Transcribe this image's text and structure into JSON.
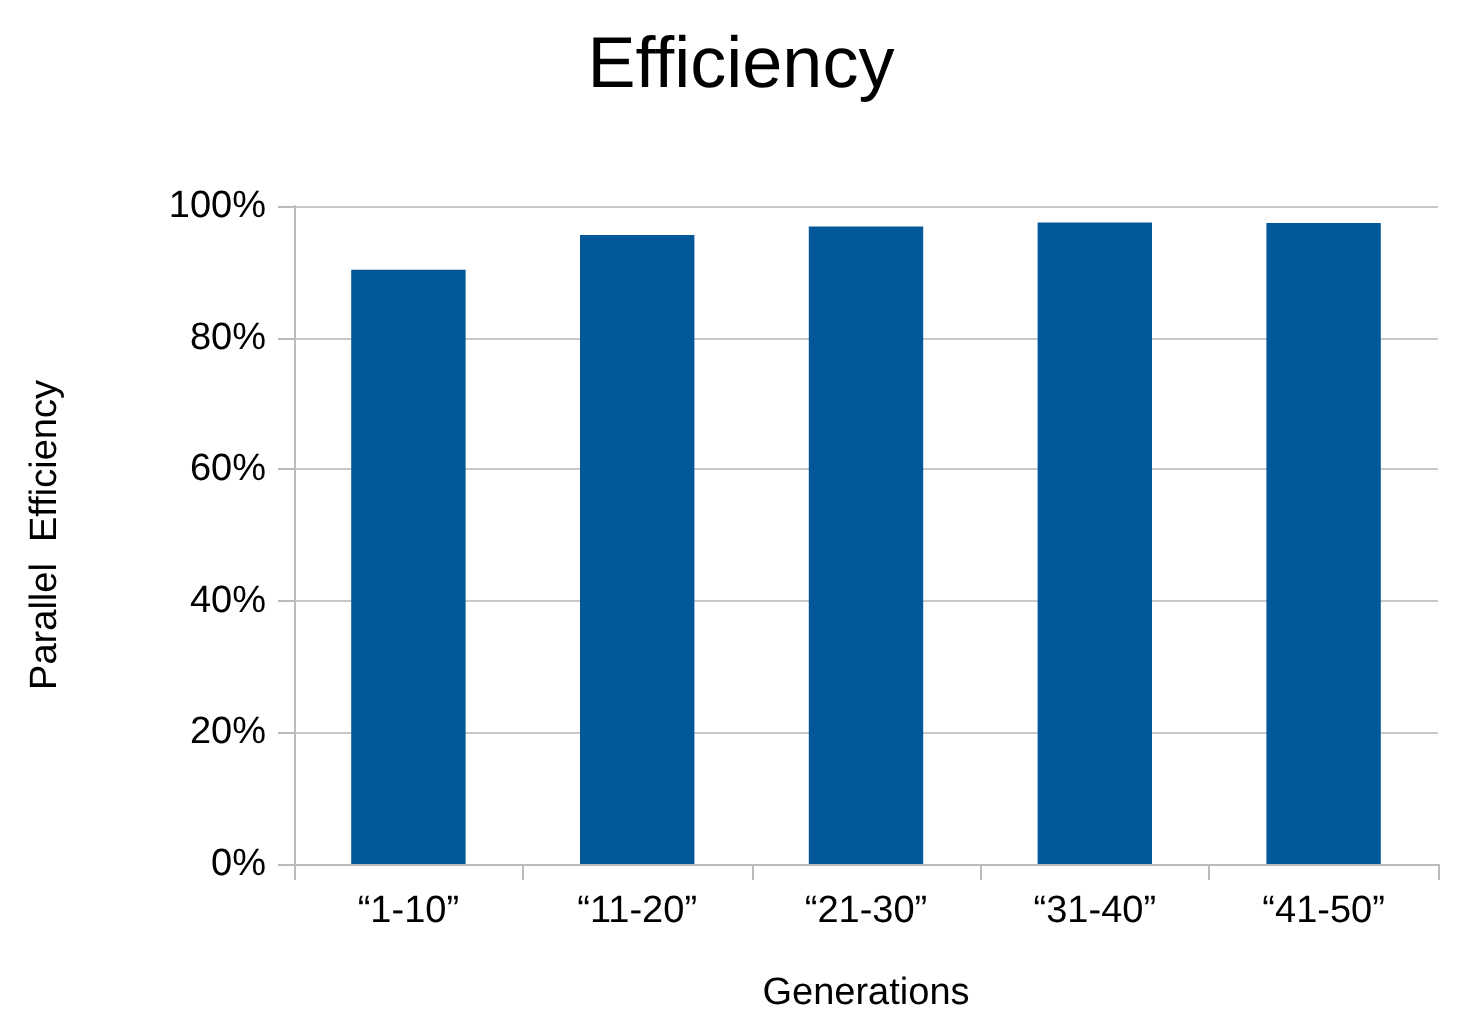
{
  "chart_data": {
    "type": "bar",
    "title": "Efficiency",
    "xlabel": "Generations",
    "ylabel": "Parallel  Efficiency",
    "categories": [
      "“1-10”",
      "“11-20”",
      "“21-30”",
      "“31-40”",
      "“41-50”"
    ],
    "values": [
      90.3,
      95.6,
      96.9,
      97.5,
      97.4
    ],
    "color": "#035899",
    "ylim": [
      0,
      100
    ],
    "yticks": [
      {
        "value": 0,
        "label": "0%"
      },
      {
        "value": 20,
        "label": "20%"
      },
      {
        "value": 40,
        "label": "40%"
      },
      {
        "value": 60,
        "label": "60%"
      },
      {
        "value": 80,
        "label": "80%"
      },
      {
        "value": 100,
        "label": "100%"
      }
    ],
    "grid": "y"
  }
}
